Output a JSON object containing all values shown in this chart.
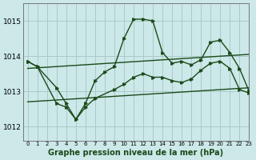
{
  "title": "Graphe pression niveau de la mer (hPa)",
  "background_color": "#cce8e8",
  "grid_color": "#aacaca",
  "line_color": "#1a4a1a",
  "xlim": [
    -0.5,
    23
  ],
  "ylim": [
    1011.6,
    1015.5
  ],
  "yticks": [
    1012,
    1013,
    1014,
    1015
  ],
  "xticks": [
    0,
    1,
    2,
    3,
    4,
    5,
    6,
    7,
    8,
    9,
    10,
    11,
    12,
    13,
    14,
    15,
    16,
    17,
    18,
    19,
    20,
    21,
    22,
    23
  ],
  "series1_x": [
    0,
    1,
    3,
    4,
    5,
    6,
    7,
    8,
    9,
    10,
    11,
    12,
    13,
    14,
    15,
    16,
    17,
    18,
    19,
    20,
    21,
    22,
    23
  ],
  "series1_y": [
    1013.85,
    1013.7,
    1013.1,
    1012.65,
    1012.2,
    1012.65,
    1013.3,
    1013.55,
    1013.7,
    1014.5,
    1015.05,
    1015.05,
    1015.0,
    1014.1,
    1013.8,
    1013.85,
    1013.75,
    1013.9,
    1014.4,
    1014.45,
    1014.1,
    1013.65,
    1013.0
  ],
  "series2_x": [
    0,
    1,
    3,
    4,
    5,
    6,
    7,
    9,
    10,
    11,
    12,
    13,
    14,
    15,
    16,
    17,
    18,
    19,
    20,
    21,
    22,
    23
  ],
  "series2_y": [
    1013.85,
    1013.7,
    1012.65,
    1012.55,
    1012.2,
    1012.55,
    1012.8,
    1013.05,
    1013.2,
    1013.4,
    1013.5,
    1013.4,
    1013.4,
    1013.3,
    1013.25,
    1013.35,
    1013.6,
    1013.8,
    1013.85,
    1013.65,
    1013.05,
    1012.95
  ],
  "trend1_x": [
    0,
    23
  ],
  "trend1_y": [
    1013.65,
    1014.05
  ],
  "trend2_x": [
    0,
    23
  ],
  "trend2_y": [
    1012.7,
    1013.1
  ]
}
